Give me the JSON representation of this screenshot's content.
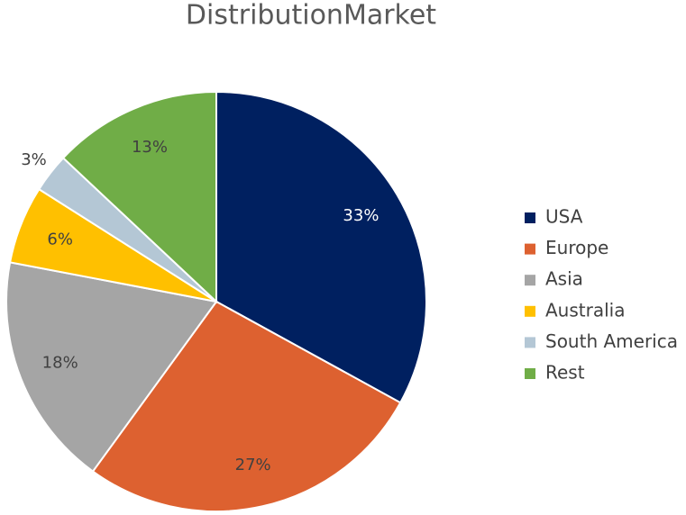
{
  "chart_data": {
    "type": "pie",
    "title": "DistributionMarket",
    "categories": [
      "USA",
      "Europe",
      "Asia",
      "Australia",
      "South America",
      "Rest"
    ],
    "values": [
      33,
      27,
      18,
      6,
      3,
      13
    ],
    "value_labels": [
      "33%",
      "27%",
      "18%",
      "6%",
      "3%",
      "13%"
    ],
    "colors": [
      "#002060",
      "#dd6130",
      "#a5a5a5",
      "#ffc000",
      "#b4c7d5",
      "#70ad47"
    ],
    "legend": "right"
  }
}
